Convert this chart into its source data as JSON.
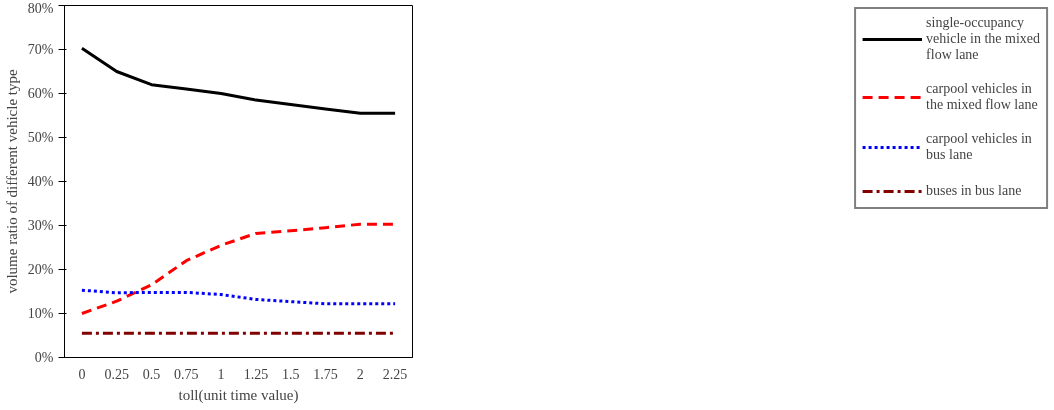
{
  "chart_data": {
    "type": "line",
    "xlabel": "toll(unit time value)",
    "ylabel": "volume ratio of different vehicle type",
    "x": [
      0,
      0.25,
      0.5,
      0.75,
      1,
      1.25,
      1.5,
      1.75,
      2,
      2.25
    ],
    "xlim": [
      -0.125,
      2.375
    ],
    "xticks": [
      0,
      0.25,
      0.5,
      0.75,
      1,
      1.25,
      1.5,
      1.75,
      2,
      2.25
    ],
    "ylim": [
      0,
      80
    ],
    "yticks": [
      {
        "value": 0,
        "label": "0%"
      },
      {
        "value": 10,
        "label": "10%"
      },
      {
        "value": 20,
        "label": "20%"
      },
      {
        "value": 30,
        "label": "30%"
      },
      {
        "value": 40,
        "label": "40%"
      },
      {
        "value": 50,
        "label": "50%"
      },
      {
        "value": 60,
        "label": "60%"
      },
      {
        "value": 70,
        "label": "70%"
      },
      {
        "value": 80,
        "label": "80%"
      }
    ],
    "grid": false,
    "legend": "right",
    "marker": "none",
    "series": [
      {
        "name": "single-occupancy vehicle in the mixed flow lane",
        "color": "#000000",
        "line_style": "solid",
        "values": [
          70.3,
          65,
          62,
          61,
          60,
          58.5,
          57.5,
          56.5,
          55.5,
          55.5
        ]
      },
      {
        "name": "carpool vehicles in the mixed flow lane",
        "color": "#ff0000",
        "line_style": "dashed",
        "values": [
          10,
          12.8,
          16.5,
          22,
          25.5,
          28.2,
          28.8,
          29.5,
          30.3,
          30.3
        ]
      },
      {
        "name": "carpool vehicles in bus lane",
        "color": "#0000ff",
        "line_style": "dotted",
        "values": [
          15.3,
          14.7,
          14.8,
          14.8,
          14.3,
          13.2,
          12.7,
          12.2,
          12.2,
          12.2
        ]
      },
      {
        "name": "buses in bus lane",
        "color": "#800000",
        "line_style": "dashdot",
        "values": [
          5.5,
          5.5,
          5.5,
          5.5,
          5.5,
          5.5,
          5.5,
          5.5,
          5.5,
          5.5
        ]
      }
    ]
  }
}
